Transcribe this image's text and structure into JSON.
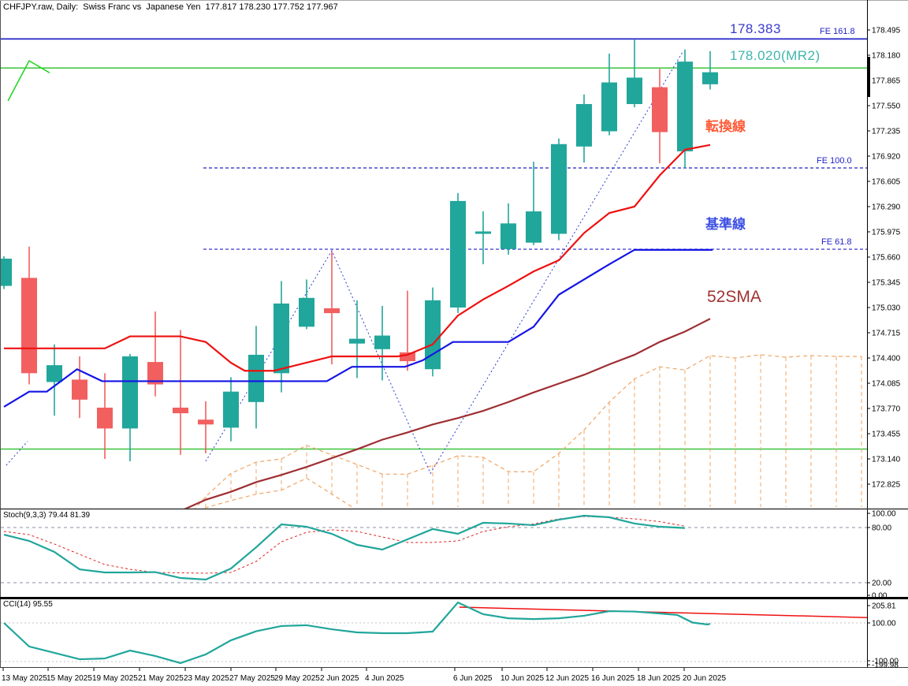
{
  "window": {
    "title": "CHFJPY.raw, Daily:  Swiss Franc vs  Japanese Yen  177.817 178.230 177.752 177.967"
  },
  "annotations": {
    "fe161_price": "178.383",
    "mr2": "178.020(MR2)",
    "fe161": "FE 161.8",
    "fe100": "FE 100.0",
    "fe618": "FE 61.8",
    "tenkan_label": "転換線",
    "kijun_label": "基準線",
    "sma_label": "52SMA"
  },
  "panels": {
    "stoch_label": "Stoch(9,3,3) 79.44 81.39",
    "cci_label": "CCI(14) 95.55"
  },
  "colors": {
    "bull": "#21a69b",
    "bear": "#f25f5f",
    "tenkan": "#ee1111",
    "kijun": "#1414e6",
    "sma52": "#9e2f33",
    "cloud": "#f0a464",
    "fib": "#2323c8",
    "green_line": "#3cc43c",
    "green_zigzag": "#27d627",
    "zigzag": "#2a3bd0",
    "stoch_k": "#21a69b",
    "stoch_d": "#dd2222",
    "cci_line": "#21a69b",
    "cci_signal": "#ee1111",
    "level_gray": "#8a90a0",
    "level_light": "#c4c4c4",
    "axis": "#000000"
  },
  "axis": {
    "price_labels": [
      "178.495",
      "178.180",
      "177.865",
      "177.550",
      "177.235",
      "176.920",
      "176.605",
      "176.290",
      "175.975",
      "175.660",
      "175.345",
      "175.030",
      "174.715",
      "174.400",
      "174.085",
      "173.770",
      "173.455",
      "173.140",
      "172.825"
    ],
    "stoch_labels": [
      [
        "100.00",
        651
      ],
      [
        "80.00",
        669
      ],
      [
        "20.00",
        739
      ],
      [
        "0.00",
        755
      ]
    ],
    "cci_labels": [
      [
        "205.81",
        768
      ],
      [
        "100.00",
        790
      ],
      [
        "-100.00",
        838
      ],
      [
        "-199.98",
        843
      ]
    ],
    "dates": [
      [
        "13 May 2025",
        2
      ],
      [
        "15 May 2025",
        59
      ],
      [
        "19 May 2025",
        117
      ],
      [
        "21 May 2025",
        175
      ],
      [
        "23 May 2025",
        233
      ],
      [
        "27 May 2025",
        291
      ],
      [
        "29 May 2025",
        348
      ],
      [
        "2 Jun 2025",
        406
      ],
      [
        "4 Jun 2025",
        463
      ],
      [
        "6 Jun 2025",
        575
      ],
      [
        "10 Jun 2025",
        635
      ],
      [
        "12 Jun 2025",
        692
      ],
      [
        "16 Jun 2025",
        750
      ],
      [
        "18 Jun 2025",
        808
      ],
      [
        "20 Jun 2025",
        866
      ]
    ]
  },
  "chart_data": {
    "type": "candlestick",
    "symbol": "CHFJPY.raw",
    "timeframe": "Daily",
    "title": "Swiss Franc vs Japanese Yen",
    "last_quote": {
      "open": 177.817,
      "high": 178.23,
      "low": 177.752,
      "close": 177.967
    },
    "price_axis": {
      "top_price": 178.495,
      "bottom_price": 172.52,
      "tick_step": 0.315
    },
    "candles": [
      {
        "d": "13 May",
        "o": 175.3,
        "h": 175.67,
        "l": 175.26,
        "c": 175.64
      },
      {
        "d": "14 May",
        "o": 175.4,
        "h": 175.79,
        "l": 174.07,
        "c": 174.21
      },
      {
        "d": "15 May",
        "o": 174.1,
        "h": 174.57,
        "l": 173.68,
        "c": 174.31
      },
      {
        "d": "16 May",
        "o": 174.13,
        "h": 174.42,
        "l": 173.65,
        "c": 173.88
      },
      {
        "d": "19 May",
        "o": 173.78,
        "h": 174.21,
        "l": 173.14,
        "c": 173.52
      },
      {
        "d": "20 May",
        "o": 173.52,
        "h": 174.45,
        "l": 173.11,
        "c": 174.42
      },
      {
        "d": "21 May",
        "o": 174.35,
        "h": 174.98,
        "l": 173.92,
        "c": 174.07
      },
      {
        "d": "22 May",
        "o": 173.78,
        "h": 174.75,
        "l": 173.19,
        "c": 173.71
      },
      {
        "d": "23 May",
        "o": 173.63,
        "h": 173.86,
        "l": 173.21,
        "c": 173.57
      },
      {
        "d": "26 May",
        "o": 173.53,
        "h": 174.16,
        "l": 173.36,
        "c": 173.98
      },
      {
        "d": "27 May",
        "o": 173.85,
        "h": 174.8,
        "l": 173.52,
        "c": 174.44
      },
      {
        "d": "28 May",
        "o": 174.21,
        "h": 175.36,
        "l": 173.97,
        "c": 175.08
      },
      {
        "d": "29 May",
        "o": 174.79,
        "h": 175.38,
        "l": 174.76,
        "c": 175.15
      },
      {
        "d": "30 May",
        "o": 175.02,
        "h": 175.73,
        "l": 174.32,
        "c": 174.96
      },
      {
        "d": "2 Jun",
        "o": 174.58,
        "h": 175.12,
        "l": 174.15,
        "c": 174.64
      },
      {
        "d": "3 Jun",
        "o": 174.51,
        "h": 175.05,
        "l": 174.12,
        "c": 174.68
      },
      {
        "d": "4 Jun",
        "o": 174.47,
        "h": 175.24,
        "l": 174.24,
        "c": 174.36
      },
      {
        "d": "5 Jun",
        "o": 174.26,
        "h": 175.28,
        "l": 174.17,
        "c": 175.12
      },
      {
        "d": "6 Jun",
        "o": 175.03,
        "h": 176.46,
        "l": 174.96,
        "c": 176.36
      },
      {
        "d": "9 Jun",
        "o": 175.95,
        "h": 176.23,
        "l": 175.57,
        "c": 175.98
      },
      {
        "d": "10 Jun",
        "o": 175.76,
        "h": 176.33,
        "l": 175.69,
        "c": 176.08
      },
      {
        "d": "11 Jun",
        "o": 175.84,
        "h": 176.85,
        "l": 175.81,
        "c": 176.23
      },
      {
        "d": "12 Jun",
        "o": 175.95,
        "h": 177.14,
        "l": 175.87,
        "c": 177.07
      },
      {
        "d": "13 Jun",
        "o": 177.04,
        "h": 177.69,
        "l": 176.84,
        "c": 177.57
      },
      {
        "d": "16 Jun",
        "o": 177.23,
        "h": 178.2,
        "l": 177.18,
        "c": 177.84
      },
      {
        "d": "17 Jun",
        "o": 177.57,
        "h": 178.38,
        "l": 177.53,
        "c": 177.9
      },
      {
        "d": "18 Jun",
        "o": 177.78,
        "h": 178.01,
        "l": 176.83,
        "c": 177.22
      },
      {
        "d": "19 Jun",
        "o": 176.98,
        "h": 178.25,
        "l": 176.77,
        "c": 178.1
      },
      {
        "d": "20 Jun",
        "o": 177.817,
        "h": 178.23,
        "l": 177.752,
        "c": 177.967
      }
    ],
    "overlays": {
      "tenkan": [
        [
          0,
          174.52
        ],
        [
          4,
          174.52
        ],
        [
          5,
          174.67
        ],
        [
          7,
          174.67
        ],
        [
          8,
          174.6
        ],
        [
          9,
          174.34
        ],
        [
          9.55,
          174.24
        ],
        [
          10.7,
          174.24
        ],
        [
          13,
          174.42
        ],
        [
          15.6,
          174.42
        ],
        [
          16,
          174.44
        ],
        [
          17,
          174.57
        ],
        [
          18,
          174.93
        ],
        [
          19,
          175.13
        ],
        [
          20,
          175.3
        ],
        [
          21,
          175.48
        ],
        [
          22,
          175.62
        ],
        [
          23,
          175.96
        ],
        [
          24,
          176.21
        ],
        [
          25,
          176.29
        ],
        [
          26,
          176.68
        ],
        [
          27,
          177.0
        ],
        [
          28,
          177.06
        ]
      ],
      "kijun": [
        [
          0,
          173.79
        ],
        [
          1,
          173.98
        ],
        [
          1.7,
          173.98
        ],
        [
          2.9,
          174.26
        ],
        [
          3.9,
          174.11
        ],
        [
          12.8,
          174.11
        ],
        [
          13.8,
          174.29
        ],
        [
          15.9,
          174.29
        ],
        [
          16.6,
          174.37
        ],
        [
          17.8,
          174.6
        ],
        [
          20,
          174.6
        ],
        [
          21,
          174.79
        ],
        [
          22,
          175.19
        ],
        [
          23,
          175.38
        ],
        [
          24,
          175.57
        ],
        [
          25,
          175.75
        ],
        [
          28.1,
          175.75
        ]
      ],
      "sma52": [
        [
          7,
          172.49
        ],
        [
          8,
          172.63
        ],
        [
          9,
          172.73
        ],
        [
          10,
          172.85
        ],
        [
          11,
          172.94
        ],
        [
          12,
          173.04
        ],
        [
          13,
          173.15
        ],
        [
          14,
          173.26
        ],
        [
          15,
          173.38
        ],
        [
          16,
          173.47
        ],
        [
          17,
          173.57
        ],
        [
          18,
          173.65
        ],
        [
          19,
          173.74
        ],
        [
          20,
          173.85
        ],
        [
          21,
          173.97
        ],
        [
          22,
          174.08
        ],
        [
          23,
          174.19
        ],
        [
          24,
          174.32
        ],
        [
          25,
          174.44
        ],
        [
          26,
          174.6
        ],
        [
          27,
          174.73
        ],
        [
          28,
          174.89
        ]
      ],
      "senkou_a": [
        [
          7.5,
          172.49
        ],
        [
          8,
          172.67
        ],
        [
          9,
          172.96
        ],
        [
          10,
          173.1
        ],
        [
          11,
          173.14
        ],
        [
          12,
          173.31
        ],
        [
          13,
          173.19
        ],
        [
          14,
          173.07
        ],
        [
          15,
          172.95
        ],
        [
          16,
          172.95
        ],
        [
          17,
          173.06
        ],
        [
          18,
          173.18
        ],
        [
          19,
          173.16
        ],
        [
          20,
          172.98
        ],
        [
          21,
          172.98
        ],
        [
          22,
          173.21
        ],
        [
          23,
          173.5
        ],
        [
          24,
          173.85
        ],
        [
          25,
          174.14
        ],
        [
          26,
          174.29
        ],
        [
          27,
          174.25
        ],
        [
          28,
          174.43
        ],
        [
          29,
          174.4
        ],
        [
          30,
          174.44
        ],
        [
          31,
          174.41
        ],
        [
          32,
          174.43
        ],
        [
          33,
          174.42
        ],
        [
          34,
          174.42
        ]
      ],
      "senkou_b": [
        [
          7.5,
          172.3
        ],
        [
          8,
          172.53
        ],
        [
          9,
          172.62
        ],
        [
          10,
          172.7
        ],
        [
          11,
          172.75
        ],
        [
          12,
          172.9
        ],
        [
          13,
          172.7
        ],
        [
          14,
          172.5
        ],
        [
          15,
          172.38
        ],
        [
          16,
          172.35
        ],
        [
          18,
          172.2
        ],
        [
          22,
          172.1
        ],
        [
          34,
          172.05
        ]
      ],
      "zigzag_segments": [
        [
          [
            0.09,
            173.06
          ],
          [
            0.94,
            173.36
          ]
        ],
        [
          [
            8,
            173.11
          ],
          [
            13,
            175.74
          ],
          [
            16.91,
            172.96
          ],
          [
            26.91,
            178.22
          ]
        ]
      ],
      "green_zigzag": [
        [
          0.16,
          177.61
        ],
        [
          1.0,
          178.11
        ],
        [
          1.81,
          177.96
        ]
      ],
      "green_levels": [
        178.02,
        173.263
      ],
      "fib_levels": [
        {
          "label": "FE 161.8",
          "price": 178.383,
          "style": "solid"
        },
        {
          "label": "FE 100.0",
          "price": 176.772,
          "style": "dash"
        },
        {
          "label": "FE 61.8",
          "price": 175.758,
          "style": "dash"
        }
      ]
    },
    "stoch": {
      "params": "(9,3,3)",
      "k_value": 79.44,
      "d_value": 81.39,
      "levels": [
        80,
        20
      ],
      "range": [
        0,
        100
      ],
      "k": [
        [
          0,
          72.2
        ],
        [
          1,
          65.4
        ],
        [
          2,
          53.4
        ],
        [
          3,
          34.5
        ],
        [
          4,
          31.1
        ],
        [
          5,
          31.1
        ],
        [
          6,
          31.5
        ],
        [
          7,
          25.1
        ],
        [
          8,
          23.4
        ],
        [
          9,
          35.4
        ],
        [
          10,
          58.5
        ],
        [
          11,
          83.4
        ],
        [
          12,
          80.8
        ],
        [
          13,
          73.1
        ],
        [
          14,
          61.1
        ],
        [
          15,
          56.0
        ],
        [
          16,
          67.1
        ],
        [
          17,
          78.3
        ],
        [
          18,
          73.1
        ],
        [
          19,
          85.1
        ],
        [
          20,
          84.3
        ],
        [
          21,
          82.5
        ],
        [
          22,
          88.5
        ],
        [
          23,
          92.8
        ],
        [
          24,
          91.1
        ],
        [
          25,
          84.3
        ],
        [
          26,
          80.8
        ],
        [
          27,
          79.44
        ]
      ],
      "d": [
        [
          0,
          75.7
        ],
        [
          1,
          72.2
        ],
        [
          2,
          62.0
        ],
        [
          3,
          50.8
        ],
        [
          4,
          39.7
        ],
        [
          5,
          34.5
        ],
        [
          6,
          31.1
        ],
        [
          7,
          30.7
        ],
        [
          8,
          30.3
        ],
        [
          9,
          31.1
        ],
        [
          10,
          43.1
        ],
        [
          11,
          64.5
        ],
        [
          12,
          74.8
        ],
        [
          13,
          77.4
        ],
        [
          14,
          75.7
        ],
        [
          15,
          69.7
        ],
        [
          16,
          63.7
        ],
        [
          17,
          63.7
        ],
        [
          18,
          65.4
        ],
        [
          19,
          75.7
        ],
        [
          20,
          80.8
        ],
        [
          21,
          83.8
        ],
        [
          22,
          89.4
        ],
        [
          23,
          91.9
        ],
        [
          24,
          91.1
        ],
        [
          25,
          89.4
        ],
        [
          26,
          86.4
        ],
        [
          27,
          81.39
        ]
      ]
    },
    "cci": {
      "period": 14,
      "value": 95.55,
      "levels": [
        100,
        -100
      ],
      "max": 205.81,
      "min": -199.98,
      "line": [
        [
          0,
          100
        ],
        [
          1,
          -22
        ],
        [
          2,
          -55
        ],
        [
          3,
          -88
        ],
        [
          4,
          -84
        ],
        [
          5,
          -43
        ],
        [
          6,
          -71
        ],
        [
          7,
          -108
        ],
        [
          8,
          -63
        ],
        [
          9,
          10
        ],
        [
          10,
          57
        ],
        [
          11,
          84
        ],
        [
          12,
          88
        ],
        [
          13,
          67
        ],
        [
          14,
          51
        ],
        [
          15,
          47
        ],
        [
          16,
          47
        ],
        [
          17,
          55
        ],
        [
          18,
          205.81
        ],
        [
          19,
          145
        ],
        [
          20,
          124
        ],
        [
          21,
          120
        ],
        [
          22,
          124
        ],
        [
          23,
          137
        ],
        [
          24,
          161
        ],
        [
          25,
          159
        ],
        [
          26,
          149
        ],
        [
          26.7,
          141
        ],
        [
          27.3,
          102
        ],
        [
          27.9,
          92
        ],
        [
          28,
          95.55
        ]
      ],
      "signal": [
        [
          18.06,
          181.6
        ],
        [
          35.8,
          122.5
        ]
      ]
    }
  }
}
